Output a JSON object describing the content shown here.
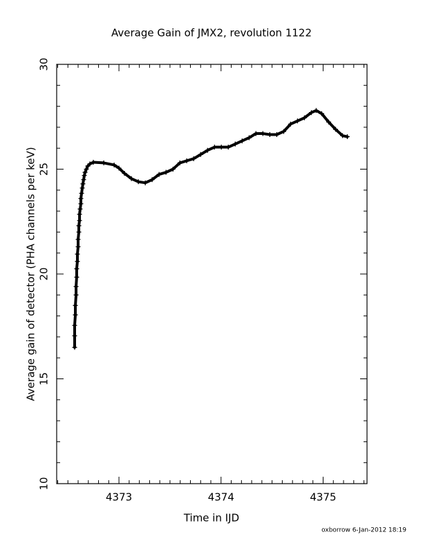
{
  "chart_data": {
    "type": "scatter",
    "title": "Average Gain of JMX2, revolution 1122",
    "xlabel": "Time in IJD",
    "ylabel": "Average gain of detector (PHA channels per keV)",
    "footer": "oxborrow  6-Jan-2012 18:19",
    "color": "#000000",
    "marker": "+",
    "xlim": [
      4372.39,
      4375.43
    ],
    "ylim": [
      10,
      30
    ],
    "xticks": [
      4373,
      4374,
      4375
    ],
    "yticks": [
      10,
      15,
      20,
      25,
      30
    ],
    "xminor": [
      4372.4,
      4372.5,
      4372.6,
      4372.7,
      4372.8,
      4372.9,
      4373.1,
      4373.2,
      4373.3,
      4373.4,
      4373.5,
      4373.6,
      4373.7,
      4373.8,
      4373.9,
      4374.1,
      4374.2,
      4374.3,
      4374.4,
      4374.5,
      4374.6,
      4374.7,
      4374.8,
      4374.9,
      4375.1,
      4375.2,
      4375.3,
      4375.4
    ],
    "yminor": [
      11,
      12,
      13,
      14,
      16,
      17,
      18,
      19,
      21,
      22,
      23,
      24,
      26,
      27,
      28,
      29
    ],
    "x": [
      4372.566,
      4372.566,
      4372.566,
      4372.573,
      4372.573,
      4372.58,
      4372.58,
      4372.586,
      4372.586,
      4372.593,
      4372.593,
      4372.6,
      4372.6,
      4372.607,
      4372.607,
      4372.614,
      4372.614,
      4372.62,
      4372.627,
      4372.627,
      4372.634,
      4372.641,
      4372.647,
      4372.654,
      4372.661,
      4372.668,
      4372.681,
      4372.695,
      4372.715,
      4372.749,
      4372.851,
      4372.953,
      4373.0,
      4373.054,
      4373.122,
      4373.19,
      4373.258,
      4373.325,
      4373.393,
      4373.461,
      4373.529,
      4373.597,
      4373.664,
      4373.732,
      4373.8,
      4373.868,
      4373.936,
      4374.003,
      4374.071,
      4374.139,
      4374.207,
      4374.275,
      4374.342,
      4374.41,
      4374.478,
      4374.546,
      4374.614,
      4374.681,
      4374.749,
      4374.817,
      4374.885,
      4374.932,
      4374.986,
      4375.054,
      4375.122,
      4375.19,
      4375.237
    ],
    "values": [
      16.5,
      17.05,
      17.55,
      18.05,
      18.5,
      19.0,
      19.4,
      19.85,
      20.25,
      20.6,
      20.95,
      21.3,
      21.65,
      22.0,
      22.3,
      22.55,
      22.85,
      23.1,
      23.35,
      23.6,
      23.85,
      24.1,
      24.3,
      24.5,
      24.7,
      24.85,
      25.0,
      25.15,
      25.25,
      25.33,
      25.3,
      25.2,
      25.05,
      24.8,
      24.55,
      24.4,
      24.35,
      24.5,
      24.75,
      24.85,
      25.0,
      25.3,
      25.4,
      25.5,
      25.7,
      25.9,
      26.05,
      26.05,
      26.05,
      26.2,
      26.35,
      26.5,
      26.7,
      26.7,
      26.65,
      26.65,
      26.8,
      27.15,
      27.3,
      27.45,
      27.7,
      27.8,
      27.65,
      27.25,
      26.9,
      26.6,
      26.55
    ]
  }
}
